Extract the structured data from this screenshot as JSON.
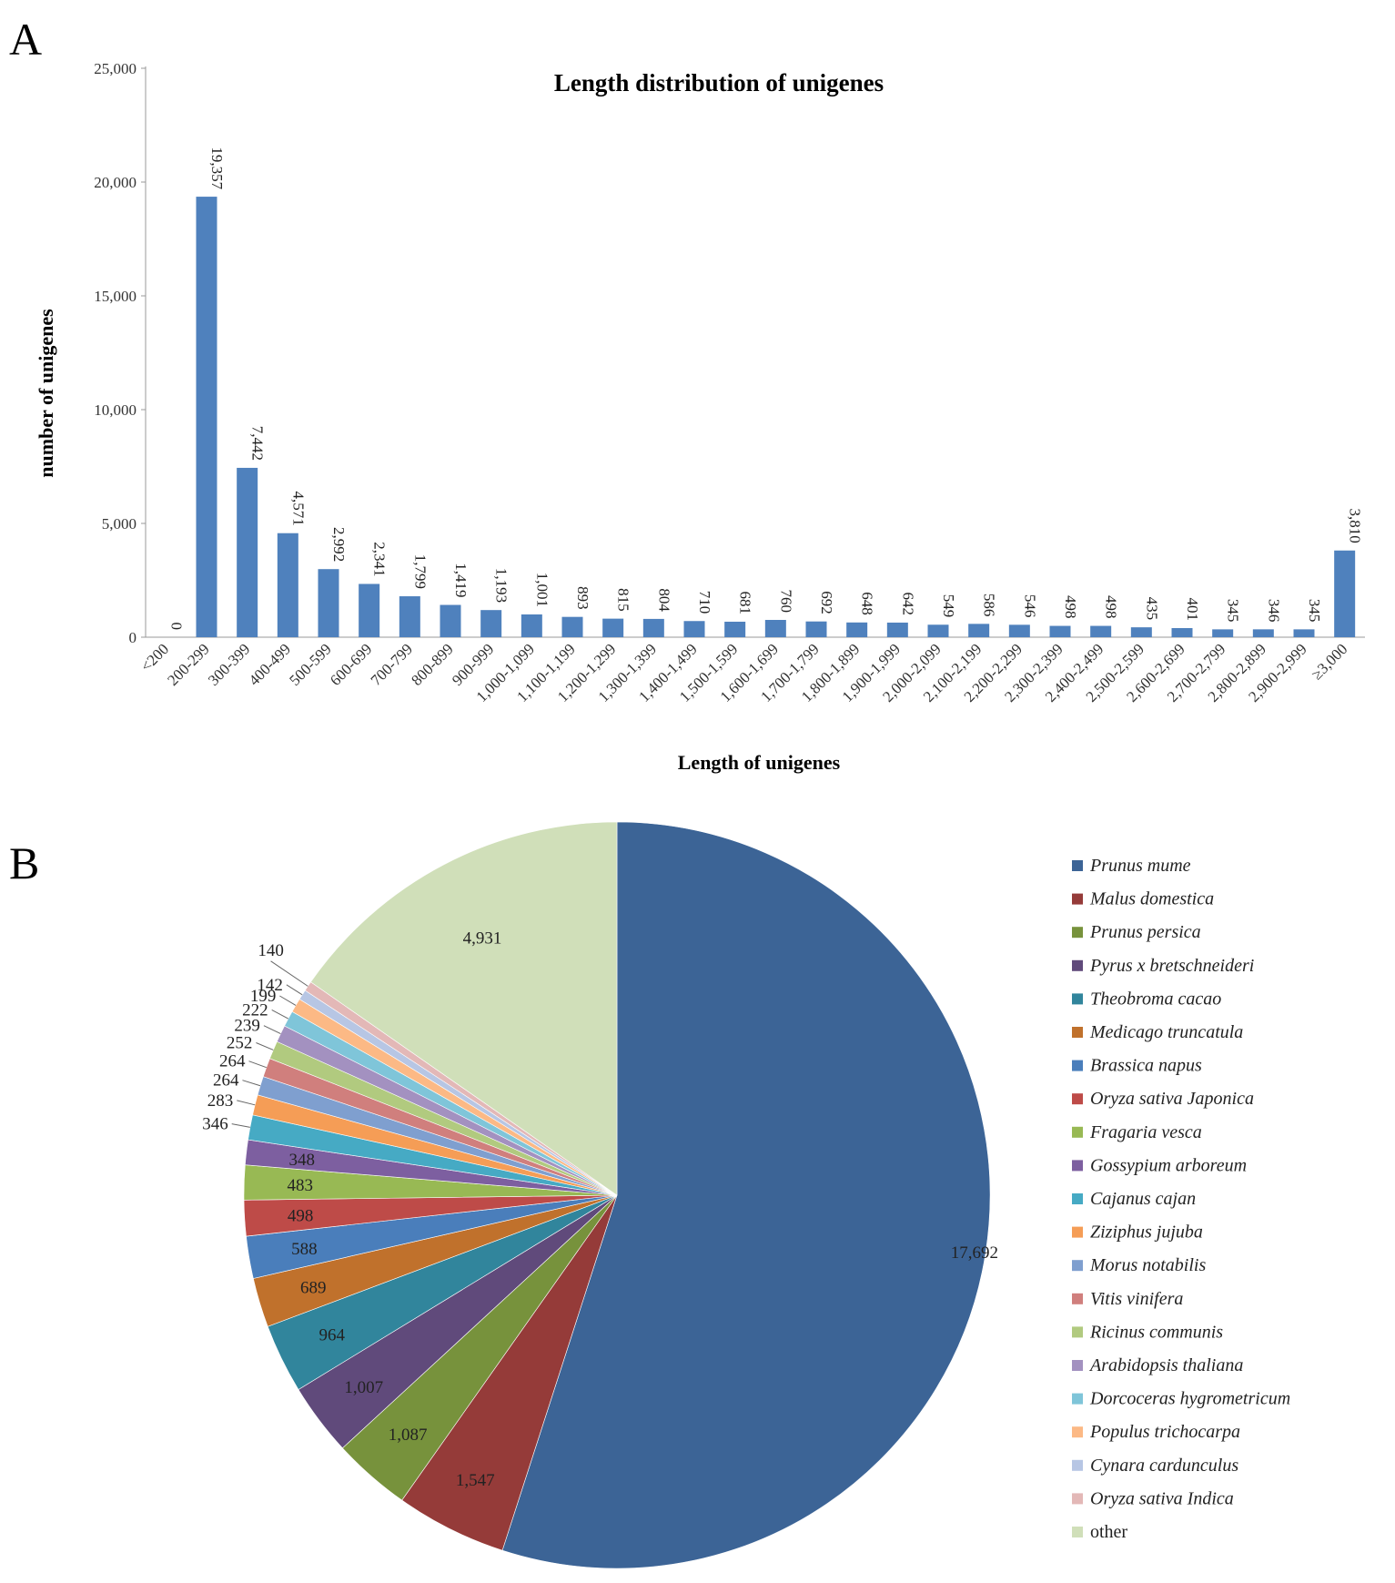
{
  "panels": {
    "a_letter": "A",
    "b_letter": "B"
  },
  "chart_data": [
    {
      "type": "bar",
      "title": "Length distribution of unigenes",
      "xlabel": "Length of unigenes",
      "ylabel": "number of unigenes",
      "ylim": [
        0,
        25000
      ],
      "yticks": [
        "0",
        "5,000",
        "10,000",
        "15,000",
        "20,000",
        "25,000"
      ],
      "ytick_values": [
        0,
        5000,
        10000,
        15000,
        20000,
        25000
      ],
      "color": "#4f81bd",
      "categories": [
        "<200",
        "200-299",
        "300-399",
        "400-499",
        "500-599",
        "600-699",
        "700-799",
        "800-899",
        "900-999",
        "1,000-1,099",
        "1,100-1,199",
        "1,200-1,299",
        "1,300-1,399",
        "1,400-1,499",
        "1,500-1,599",
        "1,600-1,699",
        "1,700-1,799",
        "1,800-1,899",
        "1,900-1,999",
        "2,000-2,099",
        "2,100-2,199",
        "2,200-2,299",
        "2,300-2,399",
        "2,400-2,499",
        "2,500-2,599",
        "2,600-2,699",
        "2,700-2,799",
        "2,800-2,899",
        "2,900-2,999",
        "≥3,000"
      ],
      "values": [
        0,
        19357,
        7442,
        4571,
        2992,
        2341,
        1799,
        1419,
        1193,
        1001,
        893,
        815,
        804,
        710,
        681,
        760,
        692,
        648,
        642,
        549,
        586,
        546,
        498,
        498,
        435,
        401,
        345,
        346,
        345,
        3810
      ],
      "value_labels": [
        "0",
        "19,357",
        "7,442",
        "4,571",
        "2,992",
        "2,341",
        "1,799",
        "1,419",
        "1,193",
        "1,001",
        "893",
        "815",
        "804",
        "710",
        "681",
        "760",
        "692",
        "648",
        "642",
        "549",
        "586",
        "546",
        "498",
        "498",
        "435",
        "401",
        "345",
        "346",
        "345",
        "3,810"
      ]
    },
    {
      "type": "pie",
      "slices": [
        {
          "name": "Prunus mume",
          "value": 17692,
          "label": "17,692",
          "color": "#3c6496",
          "italic": true
        },
        {
          "name": "Malus domestica",
          "value": 1547,
          "label": "1,547",
          "color": "#953b39",
          "italic": true
        },
        {
          "name": "Prunus persica",
          "value": 1087,
          "label": "1,087",
          "color": "#77923c",
          "italic": true
        },
        {
          "name": "Pyrus x bretschneideri",
          "value": 1007,
          "label": "1,007",
          "color": "#604a7b",
          "italic": true
        },
        {
          "name": "Theobroma cacao",
          "value": 964,
          "label": "964",
          "color": "#31859c",
          "italic": true
        },
        {
          "name": "Medicago truncatula",
          "value": 689,
          "label": "689",
          "color": "#c0712c",
          "italic": true
        },
        {
          "name": "Brassica napus",
          "value": 588,
          "label": "588",
          "color": "#4a7ebb",
          "italic": true
        },
        {
          "name": "Oryza sativa Japonica",
          "value": 498,
          "label": "498",
          "color": "#be4b48",
          "italic": true
        },
        {
          "name": "Fragaria vesca",
          "value": 483,
          "label": "483",
          "color": "#98b954",
          "italic": true
        },
        {
          "name": "Gossypium arboreum",
          "value": 348,
          "label": "348",
          "color": "#7d5fa0",
          "italic": true
        },
        {
          "name": "Cajanus cajan",
          "value": 346,
          "label": "346",
          "color": "#46aac4",
          "italic": true
        },
        {
          "name": "Ziziphus jujuba",
          "value": 283,
          "label": "283",
          "color": "#f59d56",
          "italic": true
        },
        {
          "name": "Morus notabilis",
          "value": 264,
          "label": "264",
          "color": "#7f9fcf",
          "italic": true
        },
        {
          "name": "Vitis vinifera",
          "value": 264,
          "label": "264",
          "color": "#d07f7d",
          "italic": true
        },
        {
          "name": "Ricinus communis",
          "value": 252,
          "label": "252",
          "color": "#b1ca7f",
          "italic": true
        },
        {
          "name": "Arabidopsis thaliana",
          "value": 239,
          "label": "239",
          "color": "#a391c0",
          "italic": true
        },
        {
          "name": "Dorcoceras hygrometricum",
          "value": 222,
          "label": "222",
          "color": "#7fc5d9",
          "italic": true
        },
        {
          "name": "Populus trichocarpa",
          "value": 199,
          "label": "199",
          "color": "#fcb985",
          "italic": true
        },
        {
          "name": "Cynara cardunculus",
          "value": 142,
          "label": "142",
          "color": "#b7c6e4",
          "italic": true
        },
        {
          "name": "Oryza sativa Indica",
          "value": 140,
          "label": "140",
          "color": "#e3b8b7",
          "italic": true
        },
        {
          "name": "other",
          "value": 4931,
          "label": "4,931",
          "color": "#d0dfb9",
          "italic": false
        }
      ],
      "legend_position": "right"
    }
  ]
}
